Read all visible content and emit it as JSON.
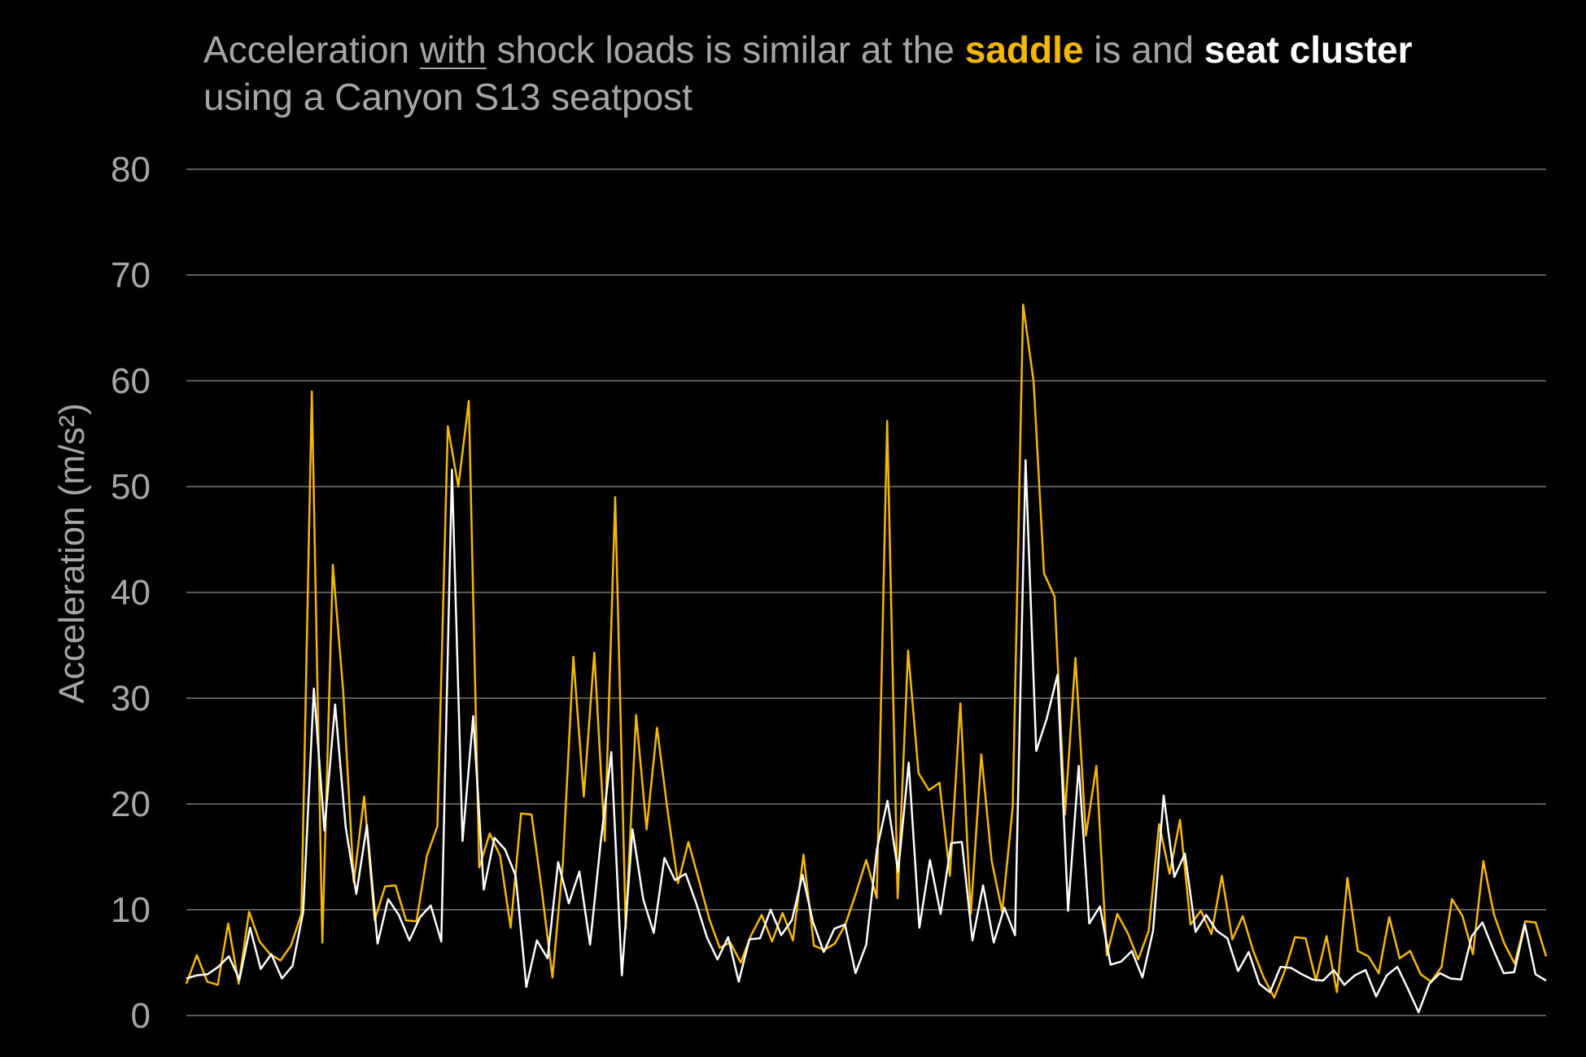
{
  "title": {
    "p1": "Acceleration ",
    "with": "with",
    "p2": " shock loads is similar at the ",
    "saddle": "saddle",
    "p3": " is and ",
    "seat": "seat",
    "p4": " ",
    "cluster": "cluster",
    "p5": " using a Canyon S13 seatpost"
  },
  "colors": {
    "background": "#000000",
    "grid": "#595959",
    "text": "#a6a6a6",
    "saddle": "#f5b800",
    "seat_cluster": "#ffffff"
  },
  "chart_data": {
    "type": "line",
    "ylabel": "Acceleration (m/s²)",
    "ylim": [
      0,
      80
    ],
    "yticks": [
      "0",
      "10",
      "20",
      "30",
      "40",
      "50",
      "60",
      "70",
      "80"
    ],
    "grid": true,
    "series": [
      {
        "key": "saddle",
        "color": "#f5b800",
        "values": [
          3.0,
          5.7,
          3.2,
          2.9,
          8.7,
          3.0,
          9.8,
          7.0,
          5.8,
          5.2,
          6.6,
          9.6,
          59.0,
          6.9,
          42.6,
          30.6,
          12.6,
          20.7,
          9.0,
          12.2,
          12.3,
          9.0,
          8.9,
          15.1,
          17.9,
          55.7,
          50.0,
          58.1,
          14.0,
          17.2,
          15.1,
          8.3,
          19.1,
          19.0,
          11.7,
          3.6,
          14.4,
          33.9,
          20.7,
          34.3,
          16.5,
          49.0,
          8.2,
          28.4,
          17.6,
          27.2,
          19.4,
          12.5,
          16.4,
          12.8,
          9.1,
          6.4,
          6.9,
          5.0,
          7.6,
          9.5,
          7.0,
          9.7,
          7.1,
          15.2,
          6.6,
          6.2,
          6.8,
          8.6,
          11.5,
          14.7,
          11.1,
          56.2,
          11.1,
          34.5,
          22.9,
          21.3,
          22.0,
          13.2,
          29.5,
          9.6,
          24.7,
          14.6,
          9.8,
          19.7,
          67.2,
          59.9,
          41.8,
          39.6,
          19.0,
          33.8,
          17.0,
          23.6,
          5.7,
          9.6,
          7.8,
          5.3,
          8.0,
          18.1,
          13.4,
          18.5,
          8.6,
          9.9,
          7.7,
          13.2,
          7.2,
          9.4,
          6.1,
          3.6,
          1.7,
          4.2,
          7.4,
          7.3,
          3.3,
          7.5,
          2.2,
          13.0,
          6.1,
          5.6,
          4.0,
          9.3,
          5.4,
          6.1,
          3.9,
          3.2,
          4.6,
          11.0,
          9.4,
          5.8,
          14.6,
          9.6,
          6.8,
          4.9,
          8.9,
          8.8,
          5.6
        ]
      },
      {
        "key": "seat_cluster",
        "color": "#ffffff",
        "values": [
          3.5,
          3.8,
          3.9,
          4.6,
          5.6,
          3.4,
          8.3,
          4.4,
          5.8,
          3.5,
          4.7,
          9.8,
          30.9,
          17.5,
          29.4,
          17.8,
          11.5,
          18.0,
          6.8,
          11.0,
          9.5,
          7.1,
          9.3,
          10.4,
          7.0,
          51.6,
          16.5,
          28.3,
          11.9,
          16.8,
          15.7,
          13.2,
          2.7,
          7.1,
          5.4,
          14.5,
          10.6,
          13.6,
          6.7,
          16.3,
          24.9,
          3.8,
          17.6,
          11.0,
          7.8,
          14.9,
          12.8,
          13.4,
          10.6,
          7.4,
          5.3,
          7.4,
          3.2,
          7.2,
          7.3,
          10.0,
          7.6,
          9.0,
          13.3,
          8.8,
          6.0,
          8.2,
          8.6,
          4.0,
          6.7,
          15.7,
          20.3,
          13.6,
          23.9,
          8.3,
          14.7,
          9.6,
          16.3,
          16.4,
          7.1,
          12.3,
          6.9,
          10.2,
          7.6,
          52.5,
          25.0,
          28.1,
          32.2,
          9.9,
          23.6,
          8.7,
          10.3,
          4.8,
          5.1,
          6.1,
          3.6,
          8.0,
          20.8,
          13.1,
          15.3,
          7.9,
          9.5,
          8.0,
          7.3,
          4.2,
          6.0,
          3.0,
          2.2,
          4.6,
          4.5,
          3.9,
          3.4,
          3.3,
          4.3,
          2.9,
          3.8,
          4.3,
          1.8,
          3.8,
          4.6,
          2.5,
          0.3,
          3.0,
          4.0,
          3.5,
          3.4,
          7.5,
          8.8,
          6.3,
          4.0,
          4.1,
          8.6,
          3.9,
          3.3
        ]
      }
    ]
  }
}
